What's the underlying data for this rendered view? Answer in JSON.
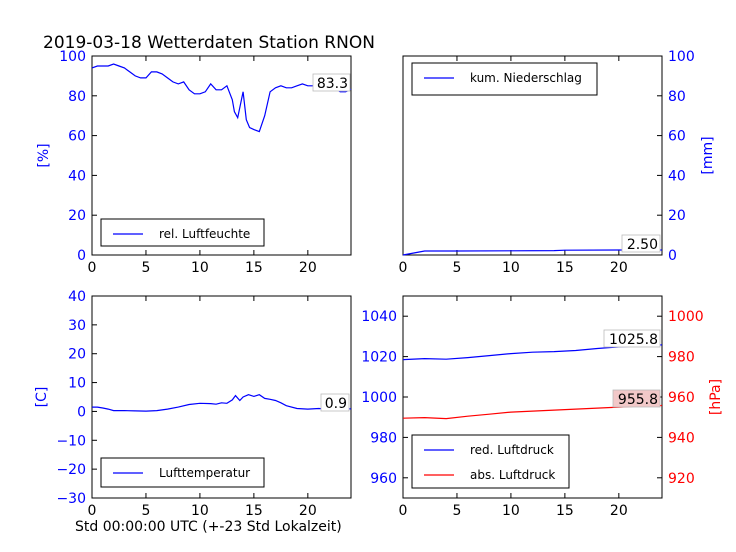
{
  "suptitle": "2019-03-18 Wetterdaten Station RNON",
  "xlabel": "Std 00:00:00 UTC (+-23 Std Lokalzeit)",
  "colors": {
    "blue": "#0000ff",
    "red": "#ff0000",
    "axis": "#000000"
  },
  "chart_data": [
    {
      "type": "line",
      "ylabel": "[%]",
      "xlim": [
        0,
        24
      ],
      "ylim": [
        0,
        100
      ],
      "xticks": [
        0,
        5,
        10,
        15,
        20
      ],
      "yticks": [
        0,
        20,
        40,
        60,
        80,
        100
      ],
      "legend_position": "lower-left",
      "last_value": "83.3",
      "series": [
        {
          "name": "rel. Luftfeuchte",
          "color": "#0000ff",
          "x": [
            0,
            0.5,
            1,
            1.5,
            2,
            2.5,
            3,
            3.5,
            4,
            4.5,
            5,
            5.5,
            6,
            6.5,
            7,
            7.5,
            8,
            8.5,
            9,
            9.5,
            10,
            10.5,
            11,
            11.5,
            12,
            12.5,
            13,
            13.2,
            13.5,
            14,
            14.3,
            14.6,
            15,
            15.5,
            16,
            16.5,
            17,
            17.5,
            18,
            18.5,
            19,
            19.5,
            20,
            20.5,
            21,
            21.5,
            22,
            22.5,
            23,
            23.5,
            24
          ],
          "values": [
            94,
            95,
            95,
            95,
            96,
            95,
            94,
            92,
            90,
            89,
            89,
            92,
            92,
            91,
            89,
            87,
            86,
            87,
            83,
            81,
            81,
            82,
            86,
            83,
            83,
            85,
            78,
            72,
            69,
            82,
            68,
            64,
            63,
            62,
            70,
            82,
            84,
            85,
            84,
            84,
            85,
            86,
            85,
            85,
            85,
            84,
            83,
            84,
            82,
            82,
            83.3
          ]
        }
      ]
    },
    {
      "type": "line",
      "ylabel": "[mm]",
      "xlim": [
        0,
        24
      ],
      "ylim": [
        0,
        100
      ],
      "xticks": [
        0,
        5,
        10,
        15,
        20
      ],
      "yticks": [
        0,
        20,
        40,
        60,
        80,
        100
      ],
      "legend_position": "upper-left",
      "last_value": "2.50",
      "series": [
        {
          "name": "kum. Niederschlag",
          "color": "#0000ff",
          "x": [
            0,
            0.5,
            1,
            1.5,
            2,
            5,
            10,
            14,
            15,
            20,
            24
          ],
          "values": [
            0,
            0.5,
            1,
            1.5,
            2,
            2,
            2.1,
            2.2,
            2.4,
            2.5,
            2.5
          ]
        }
      ]
    },
    {
      "type": "line",
      "ylabel": "[C]",
      "xlim": [
        0,
        24
      ],
      "ylim": [
        -30,
        40
      ],
      "xticks": [
        0,
        5,
        10,
        15,
        20
      ],
      "yticks": [
        -30,
        -20,
        -10,
        0,
        10,
        20,
        30,
        40
      ],
      "legend_position": "lower-left",
      "last_value": "0.9",
      "series": [
        {
          "name": "Lufttemperatur",
          "color": "#0000ff",
          "x": [
            0,
            0.5,
            1,
            1.5,
            2,
            3,
            4,
            5,
            6,
            7,
            8,
            9,
            10,
            11,
            11.5,
            12,
            12.5,
            13,
            13.3,
            13.7,
            14,
            14.5,
            15,
            15.5,
            16,
            16.5,
            17,
            17.5,
            18,
            19,
            20,
            21,
            22,
            23,
            24
          ],
          "values": [
            1.5,
            1.5,
            1.2,
            0.8,
            0.3,
            0.3,
            0.2,
            0.1,
            0.3,
            0.8,
            1.5,
            2.4,
            2.8,
            2.7,
            2.5,
            3.0,
            2.8,
            4.0,
            5.5,
            3.8,
            5.0,
            5.8,
            5.2,
            5.8,
            4.5,
            4.2,
            3.8,
            3.0,
            2.0,
            1.0,
            0.8,
            1.0,
            0.8,
            0.8,
            0.9
          ]
        }
      ]
    },
    {
      "type": "line",
      "ylabel": "[hPa]",
      "xlim": [
        0,
        24
      ],
      "ylim_left": [
        950,
        1050
      ],
      "ylim_right": [
        910,
        1010
      ],
      "yticks_left": [
        960,
        980,
        1000,
        1020,
        1040
      ],
      "yticks_right": [
        920,
        940,
        960,
        980,
        1000
      ],
      "xticks": [
        0,
        5,
        10,
        15,
        20
      ],
      "legend_position": "lower-left",
      "last_value_red": "1025.8",
      "last_value_abs": "955.8",
      "series": [
        {
          "name": "red. Luftdruck",
          "color": "#0000ff",
          "axis": "left",
          "x": [
            0,
            2,
            4,
            6,
            8,
            10,
            12,
            14,
            16,
            18,
            20,
            22,
            24
          ],
          "values": [
            1018.5,
            1019,
            1018.7,
            1019.5,
            1020.5,
            1021.5,
            1022.2,
            1022.5,
            1023,
            1024,
            1024.8,
            1025.3,
            1025.8
          ]
        },
        {
          "name": "abs. Luftdruck",
          "color": "#ff0000",
          "axis": "right",
          "x": [
            0,
            2,
            4,
            6,
            8,
            10,
            12,
            14,
            16,
            18,
            20,
            22,
            24
          ],
          "values": [
            949.5,
            949.8,
            949.3,
            950.5,
            951.5,
            952.5,
            953,
            953.5,
            954,
            954.5,
            955,
            955.5,
            955.8
          ]
        }
      ]
    }
  ]
}
